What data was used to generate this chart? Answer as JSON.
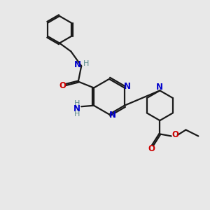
{
  "bg_color": "#e8e8e8",
  "bond_color": "#1a1a1a",
  "N_color": "#0000cc",
  "O_color": "#cc0000",
  "H_color": "#5a8a8a",
  "line_width": 1.6,
  "figsize": [
    3.0,
    3.0
  ],
  "dpi": 100,
  "xlim": [
    0,
    10
  ],
  "ylim": [
    0,
    10
  ]
}
